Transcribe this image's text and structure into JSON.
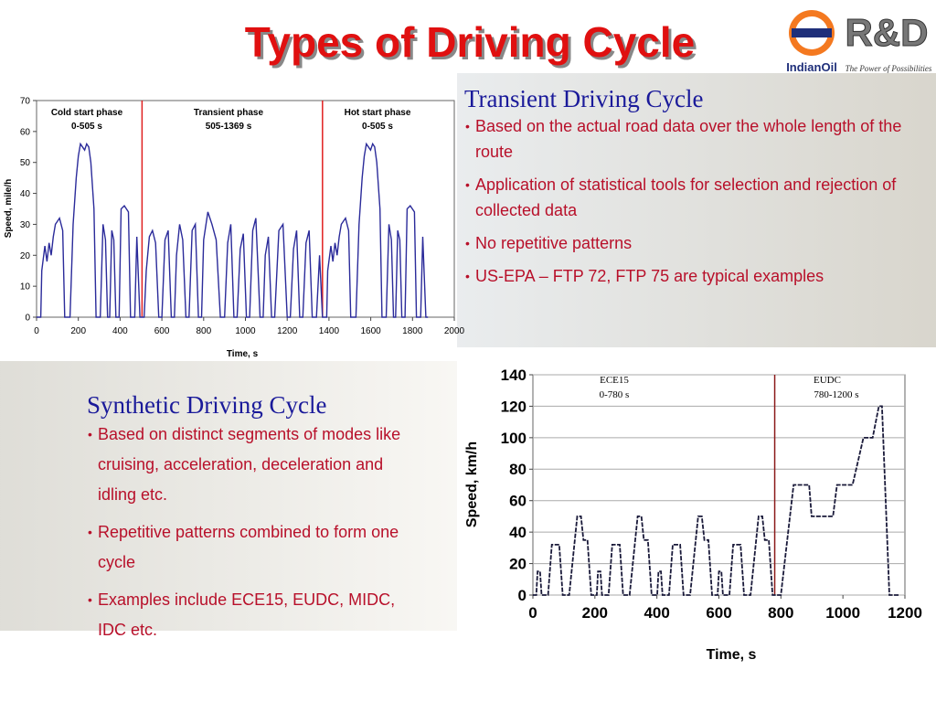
{
  "title": "Types of Driving Cycle",
  "logo": {
    "name": "R&D",
    "brand": "IndianOil",
    "tagline": "The Power of Possibilities"
  },
  "sections": [
    {
      "heading": "Transient Driving Cycle",
      "bullets": [
        "Based on the actual road data over the whole length of the route",
        "Application of statistical tools for selection and rejection of collected data",
        "No repetitive patterns",
        "US-EPA – FTP 72, FTP 75  are typical examples"
      ]
    },
    {
      "heading": "Synthetic Driving Cycle",
      "bullets": [
        "Based on distinct segments of modes like cruising, acceleration, deceleration and idling etc.",
        "Repetitive patterns combined to form one cycle",
        "Examples include ECE15, EUDC, MIDC, IDC etc."
      ]
    }
  ],
  "chart_data": [
    {
      "type": "line",
      "xlabel": "Time, s",
      "ylabel": "Speed, mile/h",
      "color": "#2b2b9a",
      "xlim": [
        0,
        2000
      ],
      "ylim": [
        0,
        70
      ],
      "xticks": [
        0,
        200,
        400,
        600,
        800,
        1000,
        1200,
        1400,
        1600,
        1800,
        2000
      ],
      "yticks": [
        0,
        10,
        20,
        30,
        40,
        50,
        60,
        70
      ],
      "vlines": [
        505,
        1369
      ],
      "vline_color": "#e02020",
      "annotations": [
        "Cold start phase",
        "0-505 s",
        "Transient phase",
        "505-1369 s",
        "Hot start phase",
        "0-505 s"
      ],
      "x": [
        0,
        20,
        25,
        40,
        50,
        60,
        70,
        80,
        90,
        100,
        110,
        125,
        135,
        160,
        175,
        190,
        200,
        210,
        220,
        230,
        240,
        250,
        260,
        275,
        285,
        305,
        318,
        330,
        340,
        350,
        360,
        370,
        380,
        395,
        405,
        420,
        440,
        450,
        470,
        480,
        495,
        505,
        515,
        525,
        540,
        555,
        570,
        585,
        600,
        615,
        630,
        645,
        660,
        670,
        685,
        700,
        715,
        730,
        745,
        760,
        775,
        790,
        800,
        820,
        840,
        860,
        880,
        900,
        915,
        930,
        945,
        960,
        975,
        990,
        1005,
        1020,
        1035,
        1050,
        1070,
        1085,
        1095,
        1110,
        1125,
        1140,
        1160,
        1180,
        1200,
        1215,
        1230,
        1245,
        1260,
        1275,
        1290,
        1305,
        1320,
        1340,
        1355,
        1369,
        1389,
        1394,
        1409,
        1419,
        1429,
        1439,
        1449,
        1459,
        1469,
        1479,
        1494,
        1504,
        1529,
        1544,
        1559,
        1569,
        1579,
        1589,
        1599,
        1609,
        1619,
        1629,
        1644,
        1654,
        1674,
        1687,
        1699,
        1709,
        1719,
        1729,
        1739,
        1749,
        1764,
        1774,
        1789,
        1809,
        1819,
        1839,
        1849,
        1864,
        1874
      ],
      "values": [
        0,
        0,
        15,
        23,
        18,
        24,
        20,
        26,
        30,
        31,
        32,
        28,
        0,
        0,
        30,
        45,
        52,
        56,
        55,
        54,
        56,
        55,
        50,
        35,
        0,
        0,
        30,
        25,
        0,
        0,
        28,
        25,
        0,
        0,
        35,
        36,
        34,
        0,
        0,
        26,
        0,
        0,
        0,
        15,
        26,
        28,
        24,
        0,
        0,
        25,
        28,
        0,
        0,
        20,
        30,
        25,
        0,
        0,
        28,
        30,
        0,
        0,
        25,
        34,
        30,
        25,
        0,
        0,
        24,
        30,
        0,
        0,
        22,
        27,
        0,
        0,
        28,
        32,
        0,
        0,
        20,
        26,
        0,
        0,
        28,
        30,
        0,
        0,
        22,
        28,
        0,
        0,
        24,
        28,
        0,
        0,
        20,
        0,
        0,
        15,
        23,
        18,
        24,
        20,
        26,
        30,
        31,
        32,
        28,
        0,
        0,
        30,
        45,
        52,
        56,
        55,
        54,
        56,
        55,
        50,
        35,
        0,
        0,
        30,
        25,
        0,
        0,
        28,
        25,
        0,
        0,
        35,
        36,
        34,
        0,
        0,
        26,
        0,
        0
      ]
    },
    {
      "type": "line",
      "xlabel": "Time, s",
      "ylabel": "Speed, km/h",
      "color": "#1a1a3a",
      "xlim": [
        0,
        1200
      ],
      "ylim": [
        0,
        140
      ],
      "xticks": [
        0,
        200,
        400,
        600,
        800,
        1000,
        1200
      ],
      "yticks": [
        0,
        20,
        40,
        60,
        80,
        100,
        120,
        140
      ],
      "grid": true,
      "vlines": [
        780
      ],
      "vline_color": "#8b1a1a",
      "annotations": [
        "ECE15",
        "0-780 s",
        "EUDC",
        "780-1200 s"
      ],
      "x": [
        0,
        11,
        15,
        23,
        28,
        49,
        61,
        85,
        96,
        117,
        143,
        155,
        163,
        176,
        188,
        195,
        206,
        210,
        218,
        223,
        244,
        256,
        280,
        291,
        312,
        338,
        350,
        358,
        371,
        383,
        390,
        401,
        405,
        413,
        418,
        439,
        451,
        475,
        486,
        507,
        533,
        545,
        553,
        566,
        578,
        585,
        596,
        600,
        608,
        613,
        634,
        646,
        670,
        681,
        702,
        728,
        740,
        748,
        761,
        773,
        780,
        800,
        841,
        891,
        899,
        968,
        981,
        1031,
        1066,
        1096,
        1116,
        1126,
        1150,
        1180
      ],
      "values": [
        0,
        0,
        15,
        15,
        0,
        0,
        32,
        32,
        0,
        0,
        50,
        50,
        35,
        35,
        0,
        0,
        0,
        15,
        15,
        0,
        0,
        32,
        32,
        0,
        0,
        50,
        50,
        35,
        35,
        0,
        0,
        0,
        15,
        15,
        0,
        0,
        32,
        32,
        0,
        0,
        50,
        50,
        35,
        35,
        0,
        0,
        0,
        15,
        15,
        0,
        0,
        32,
        32,
        0,
        0,
        50,
        50,
        35,
        35,
        0,
        0,
        0,
        70,
        70,
        50,
        50,
        70,
        70,
        100,
        100,
        120,
        120,
        0,
        0
      ]
    }
  ]
}
